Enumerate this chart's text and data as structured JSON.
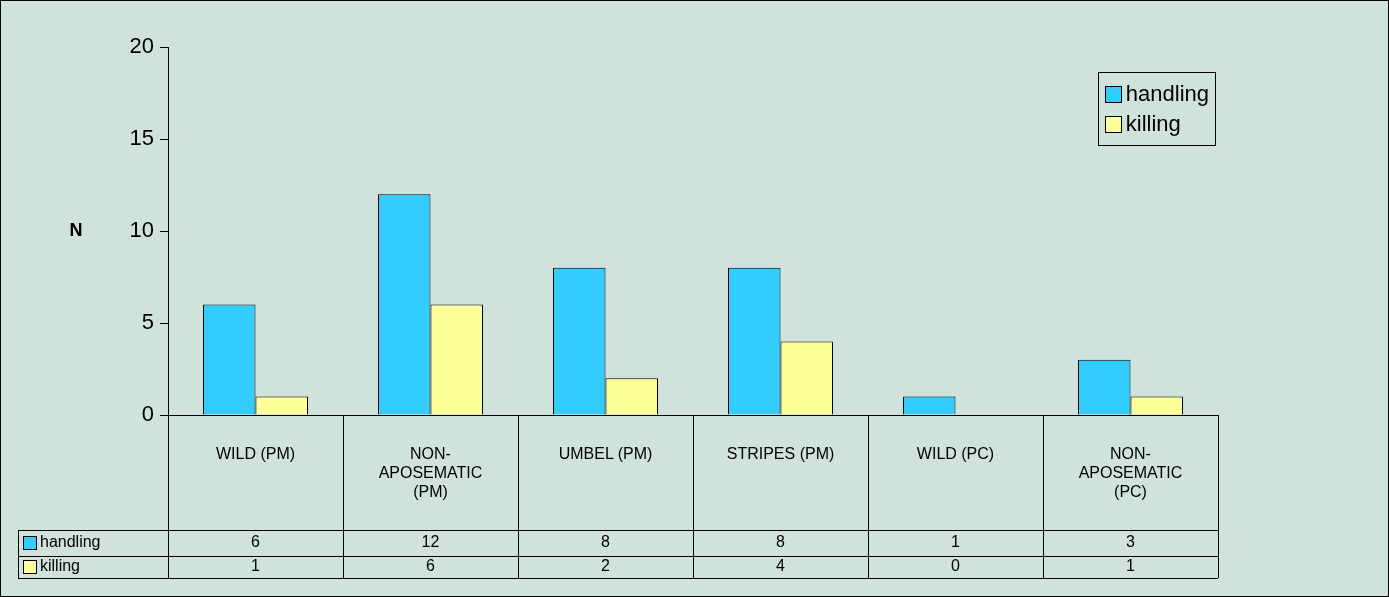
{
  "chart_data": {
    "type": "bar",
    "ylabel": "N",
    "categories": [
      "WILD (PM)",
      "NON-APOSEMATIC (PM)",
      "UMBEL (PM)",
      "STRIPES (PM)",
      "WILD (PC)",
      "NON-APOSEMATIC (PC)"
    ],
    "series": [
      {
        "name": "handling",
        "color": "#33ccff",
        "values": [
          6,
          12,
          8,
          8,
          1,
          3
        ]
      },
      {
        "name": "killing",
        "color": "#ffff99",
        "values": [
          1,
          6,
          2,
          4,
          0,
          1
        ]
      }
    ],
    "ylim": [
      0,
      20
    ],
    "yticks": [
      0,
      5,
      10,
      15,
      20
    ],
    "grid": false,
    "legend": "top right",
    "data_labels": true
  }
}
